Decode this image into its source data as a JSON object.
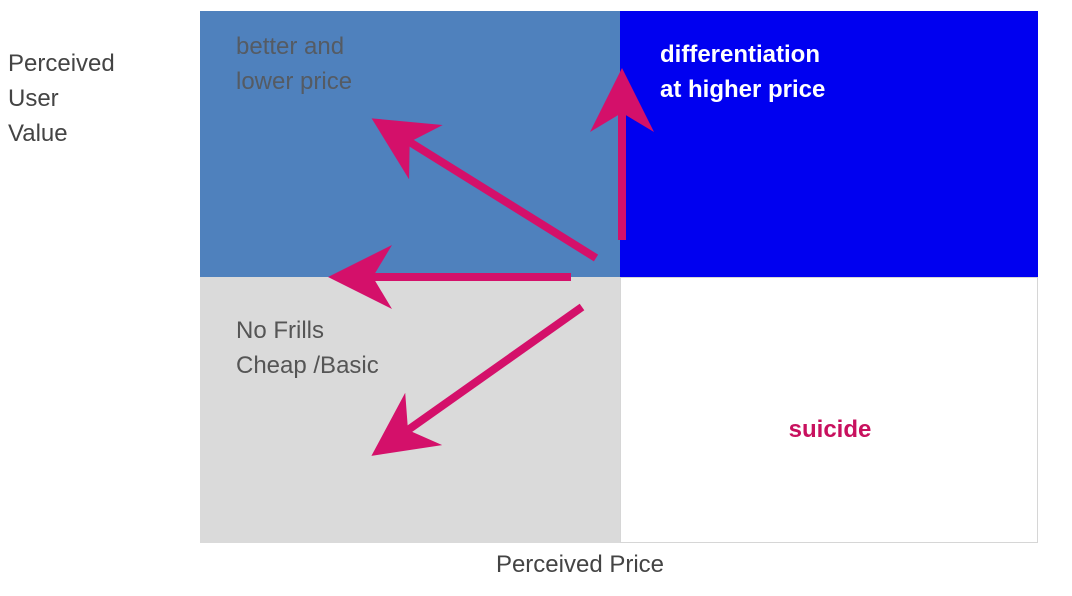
{
  "axes": {
    "y_label_lines": [
      "Perceived",
      "User",
      "Value"
    ],
    "x_label": "Perceived Price"
  },
  "quadrants": {
    "top_left": {
      "lines": [
        "better and",
        "lower price"
      ],
      "fill": "#4f81bd"
    },
    "top_right": {
      "lines": [
        "differentiation",
        "at higher price"
      ],
      "fill": "#0000f0"
    },
    "bottom_left": {
      "lines": [
        "No Frills",
        "Cheap /Basic"
      ],
      "fill": "#dadada"
    },
    "bottom_right": {
      "label": "suicide",
      "label_color": "#c8105e",
      "fill": "#ffffff"
    }
  },
  "arrow_color": "#d4106a"
}
